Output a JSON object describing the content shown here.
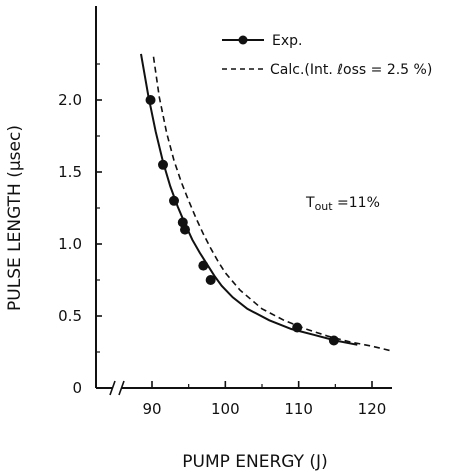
{
  "chart_data": {
    "type": "scatter",
    "xlabel": "PUMP ENERGY (J)",
    "ylabel": "PULSE LENGTH (μsec)",
    "xlim": [
      85,
      124
    ],
    "ylim": [
      0,
      2.4
    ],
    "x_ticks": [
      90,
      100,
      110,
      120
    ],
    "y_ticks": [
      0,
      0.5,
      1.0,
      1.5,
      2.0
    ],
    "x_tick_labels": [
      "90",
      "100",
      "110",
      "120"
    ],
    "y_tick_labels": [
      "0",
      "0.5",
      "1.0",
      "1.5",
      "2.0"
    ],
    "x_axis_break": true,
    "legend_position": "top-right",
    "annotation": {
      "main": "T",
      "sub": "out",
      "rest": " =11%"
    },
    "series": [
      {
        "name": "Exp.",
        "style": "markers-with-solid-line",
        "x": [
          89.8,
          91.5,
          93.0,
          94.2,
          94.5,
          97.0,
          98.0,
          109.8,
          114.8
        ],
        "y": [
          2.0,
          1.55,
          1.3,
          1.15,
          1.1,
          0.85,
          0.75,
          0.42,
          0.33
        ]
      },
      {
        "name": "Calc.(Int. ℓoss = 2.5 %)",
        "style": "dashed",
        "x": [
          90.2,
          91.0,
          92.0,
          93.0,
          94.0,
          95.0,
          96.0,
          97.0,
          98.0,
          99.0,
          100.0,
          102.0,
          105.0,
          108.0,
          111.0,
          114.0,
          117.0,
          120.0,
          122.5
        ],
        "y": [
          2.3,
          2.02,
          1.77,
          1.58,
          1.43,
          1.3,
          1.18,
          1.07,
          0.97,
          0.88,
          0.8,
          0.68,
          0.55,
          0.47,
          0.41,
          0.36,
          0.32,
          0.29,
          0.26
        ]
      }
    ],
    "exp_fit_curve": {
      "x": [
        88.5,
        89.5,
        90.5,
        91.5,
        92.5,
        93.5,
        94.5,
        95.5,
        96.5,
        97.5,
        98.5,
        99.5,
        101.0,
        103.0,
        106.0,
        109.0,
        112.0,
        115.0,
        118.0
      ],
      "y": [
        2.32,
        2.03,
        1.78,
        1.57,
        1.4,
        1.26,
        1.14,
        1.03,
        0.94,
        0.86,
        0.78,
        0.71,
        0.63,
        0.55,
        0.47,
        0.41,
        0.37,
        0.33,
        0.3
      ]
    }
  }
}
